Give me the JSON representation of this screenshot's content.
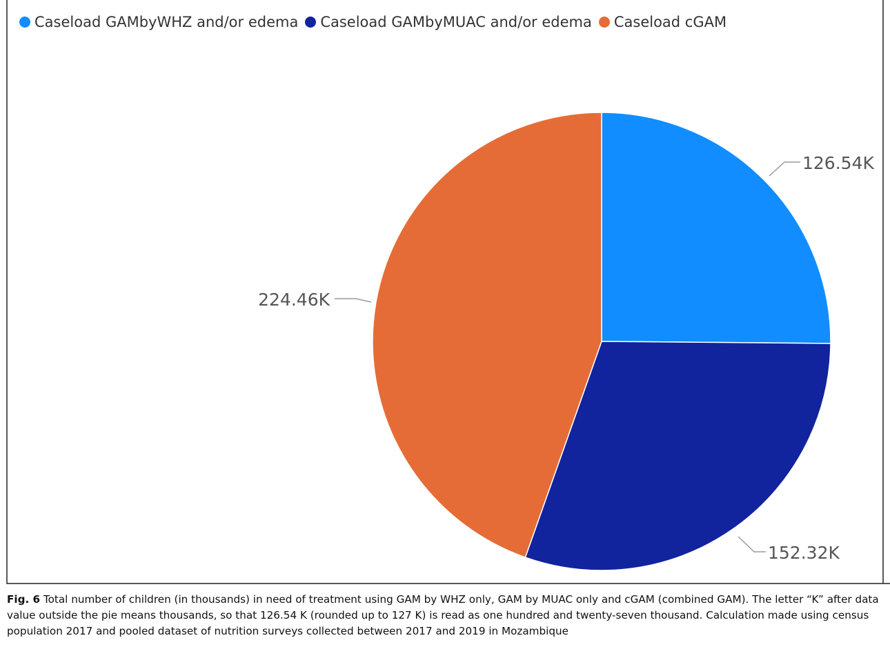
{
  "chart_data": {
    "type": "pie",
    "legend_placement": "top-left",
    "slices": [
      {
        "name": "Caseload GAMbyWHZ and/or edema",
        "value": 126.54,
        "label": "126.54K",
        "color": "#118DFF"
      },
      {
        "name": "Caseload GAMbyMUAC and/or edema",
        "value": 152.32,
        "label": "152.32K",
        "color": "#12239E"
      },
      {
        "name": "Caseload cGAM",
        "value": 224.46,
        "label": "224.46K",
        "color": "#E66C37"
      }
    ]
  },
  "caption": {
    "label": "Fig. 6",
    "text": "Total number of children (in thousands) in need of treatment using GAM by WHZ only, GAM by MUAC only and cGAM (combined GAM). The letter “K” after data value outside the pie means thousands, so that 126.54 K (rounded up to 127 K) is read as one hundred and twenty-seven thousand. Calculation made using census population 2017 and pooled dataset of nutrition surveys collected between 2017 and 2019 in Mozambique"
  }
}
